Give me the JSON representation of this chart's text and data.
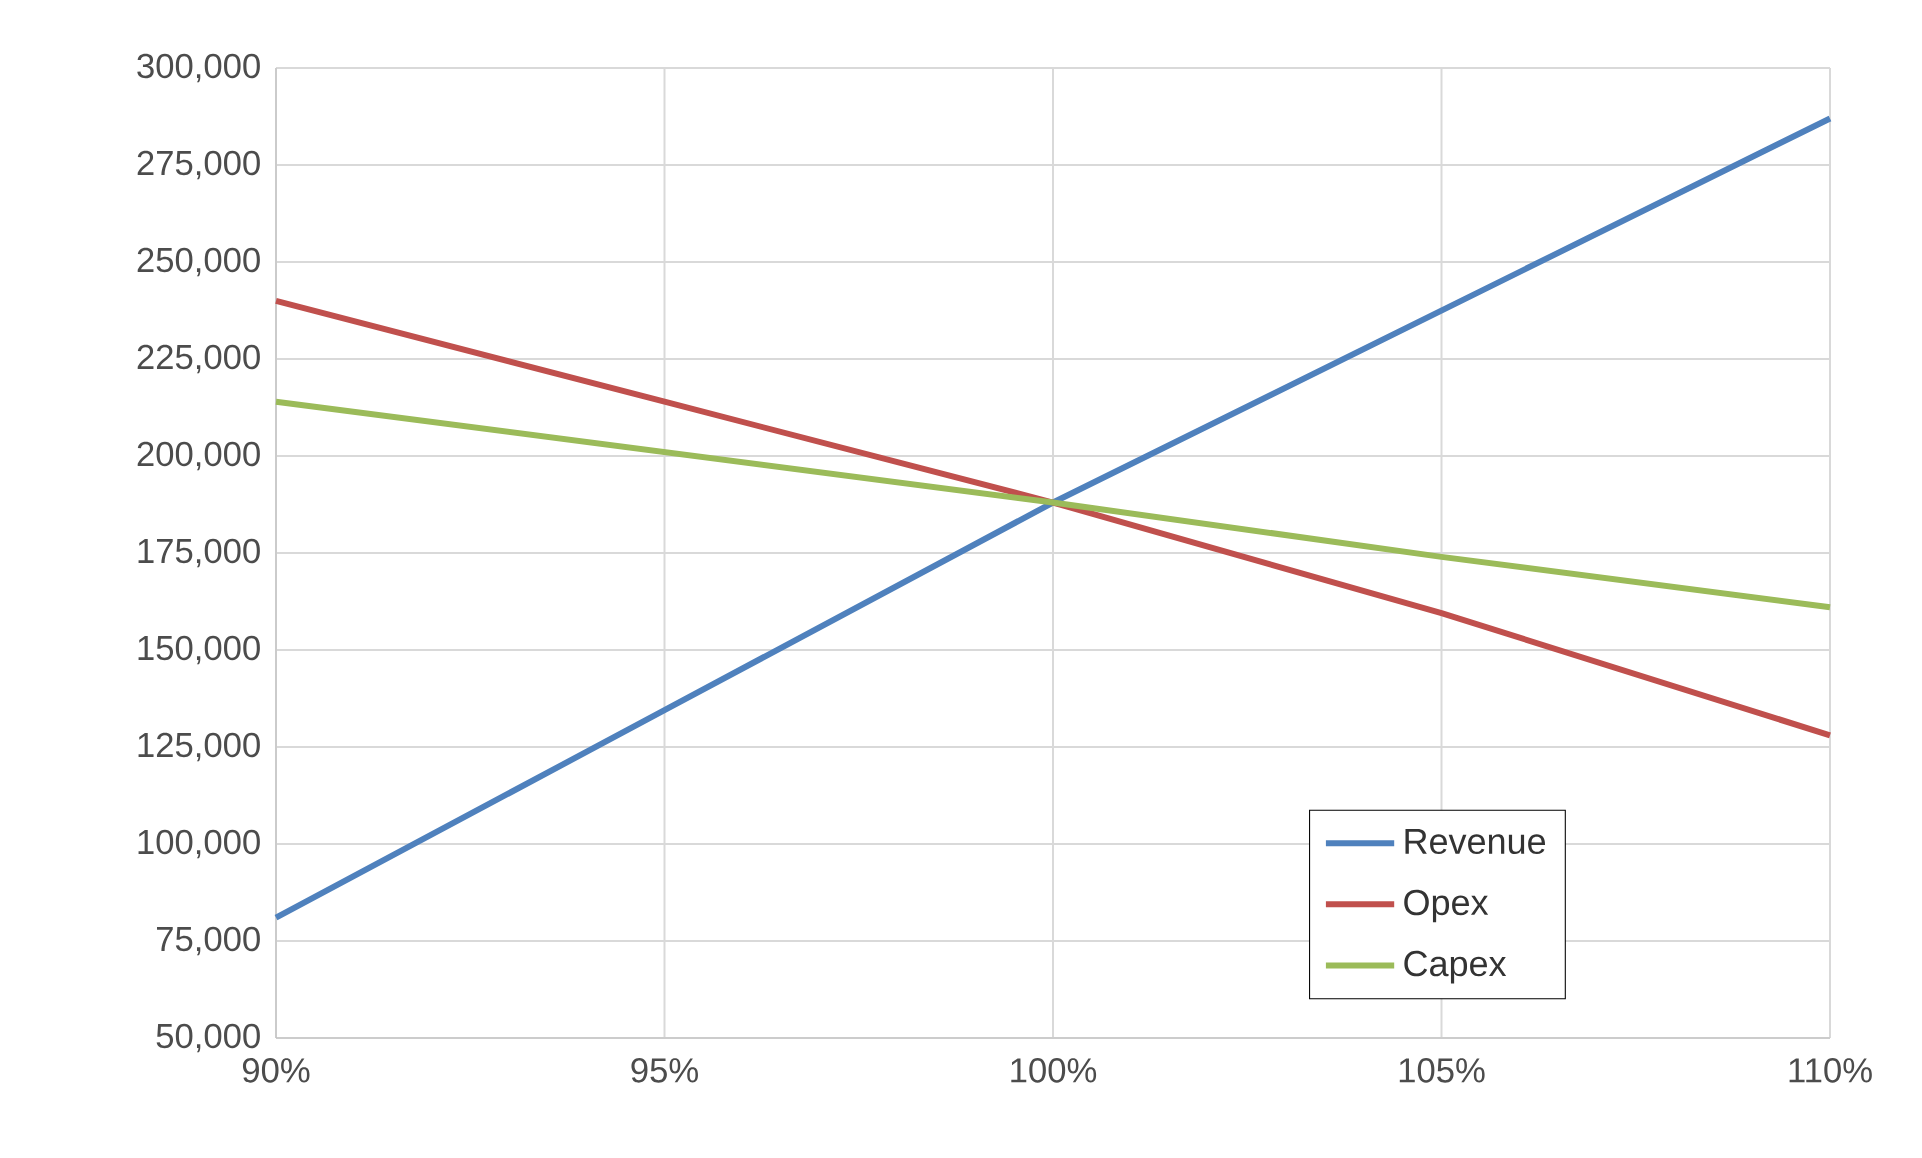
{
  "chart_data": {
    "type": "line",
    "x": [
      90,
      95,
      100,
      105,
      110
    ],
    "xlim": [
      90,
      110
    ],
    "xticks": [
      {
        "value": 90,
        "label": "90%"
      },
      {
        "value": 95,
        "label": "95%"
      },
      {
        "value": 100,
        "label": "100%"
      },
      {
        "value": 105,
        "label": "105%"
      },
      {
        "value": 110,
        "label": "110%"
      }
    ],
    "ylim": [
      50000,
      300000
    ],
    "yticks": [
      {
        "value": 50000,
        "label": "50,000"
      },
      {
        "value": 75000,
        "label": "75,000"
      },
      {
        "value": 100000,
        "label": "100,000"
      },
      {
        "value": 125000,
        "label": "125,000"
      },
      {
        "value": 150000,
        "label": "150,000"
      },
      {
        "value": 175000,
        "label": "175,000"
      },
      {
        "value": 200000,
        "label": "200,000"
      },
      {
        "value": 225000,
        "label": "225,000"
      },
      {
        "value": 250000,
        "label": "250,000"
      },
      {
        "value": 275000,
        "label": "275,000"
      },
      {
        "value": 300000,
        "label": "300,000"
      }
    ],
    "series": [
      {
        "name": "Revenue",
        "color": "#4f81bd",
        "values": [
          81000,
          134500,
          188000,
          237500,
          287000
        ]
      },
      {
        "name": "Opex",
        "color": "#c0504d",
        "values": [
          240000,
          214000,
          188000,
          159500,
          128000
        ]
      },
      {
        "name": "Capex",
        "color": "#9bbb59",
        "values": [
          214000,
          201000,
          188000,
          174000,
          161000
        ]
      }
    ],
    "grid": true,
    "legend": "bottom right",
    "marker": "none",
    "line_style": "solid"
  }
}
